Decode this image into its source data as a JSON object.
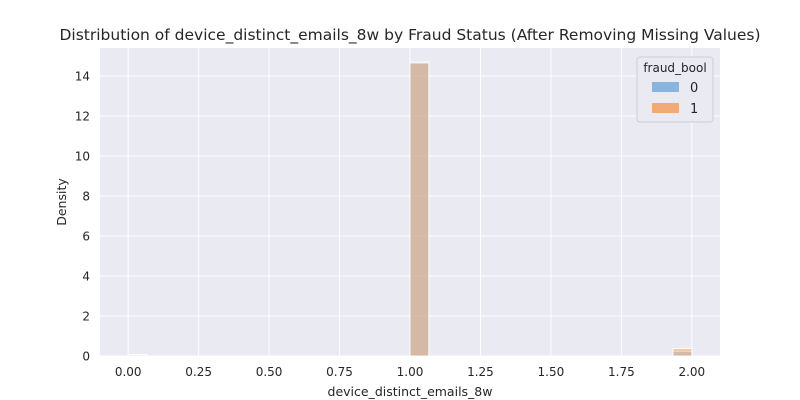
{
  "chart_data": {
    "type": "histogram",
    "title": "Distribution of device_distinct_emails_8w by Fraud Status (After Removing Missing Values)",
    "xlabel": "device_distinct_emails_8w",
    "ylabel": "Density",
    "xlim": [
      -0.1,
      2.1
    ],
    "ylim": [
      0,
      15.4
    ],
    "xticks": [
      0.0,
      0.25,
      0.5,
      0.75,
      1.0,
      1.25,
      1.5,
      1.75,
      2.0
    ],
    "xtick_labels": [
      "0.00",
      "0.25",
      "0.50",
      "0.75",
      "1.00",
      "1.25",
      "1.50",
      "1.75",
      "2.00"
    ],
    "yticks": [
      0,
      2,
      4,
      6,
      8,
      10,
      12,
      14
    ],
    "ytick_labels": [
      "0",
      "2",
      "4",
      "6",
      "8",
      "10",
      "12",
      "14"
    ],
    "grid": true,
    "legend": {
      "title": "fraud_bool",
      "placement": "top-right"
    },
    "bin_width": 0.0667,
    "series": [
      {
        "name": "0",
        "color": "#7eaedb",
        "bins": [
          {
            "x0": 0.0,
            "x1": 0.0667,
            "density": 0.08
          },
          {
            "x0": 1.0,
            "x1": 1.0667,
            "density": 14.7
          },
          {
            "x0": 1.9333,
            "x1": 2.0,
            "density": 0.22
          }
        ]
      },
      {
        "name": "1",
        "color": "#f1a566",
        "bins": [
          {
            "x0": 0.0,
            "x1": 0.0667,
            "density": 0.05
          },
          {
            "x0": 1.0,
            "x1": 1.0667,
            "density": 14.65
          },
          {
            "x0": 1.9333,
            "x1": 2.0,
            "density": 0.37
          }
        ]
      }
    ],
    "overlap_color": "#8a9598"
  }
}
